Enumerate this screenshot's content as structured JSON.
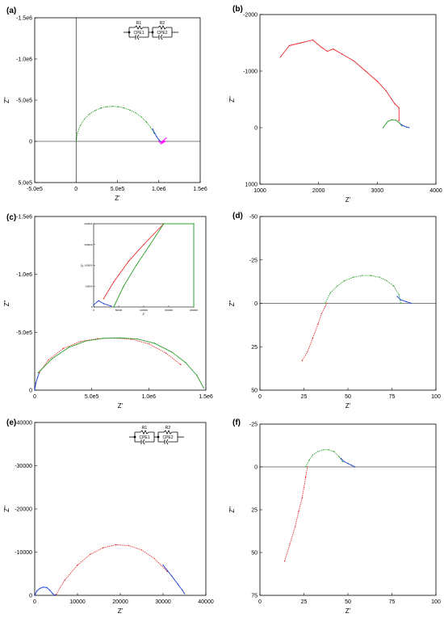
{
  "chart_data": [
    {
      "id": "a",
      "panel_label": "(a)",
      "type": "scatter",
      "xlabel": "Z'",
      "ylabel": "Z\"",
      "xlim": [
        -500000,
        1500000
      ],
      "ylim": [
        500000,
        -1500000
      ],
      "xticks": [
        -500000,
        0,
        500000,
        1000000,
        1500000
      ],
      "xtick_labels": [
        "-5.0e5",
        "0",
        "5.0e5",
        "1.0e6",
        "1.5e6"
      ],
      "yticks": [
        -1500000,
        -1000000,
        -500000,
        0,
        500000
      ],
      "ytick_labels": [
        "-1.5e6",
        "-1.0e6",
        "-5.0e5",
        "0",
        "5.0e5"
      ],
      "zero_lines": true,
      "legend": "none",
      "circuit": {
        "r1": "R1",
        "r2": "R2",
        "c1": "CPE1",
        "c2": "CPE2"
      },
      "series": [
        {
          "color": "#2ca02c",
          "style": "dotted",
          "x": [
            3500,
            15000,
            50000,
            100000,
            160000,
            230000,
            300000,
            370000,
            440000,
            510000,
            580000,
            650000,
            720000,
            790000,
            850000,
            900000,
            945000
          ],
          "y": [
            0,
            -100000,
            -190000,
            -270000,
            -330000,
            -375000,
            -405000,
            -420000,
            -425000,
            -420000,
            -405000,
            -380000,
            -345000,
            -295000,
            -235000,
            -170000,
            -95000
          ]
        },
        {
          "color": "#1f3fd1",
          "style": "solid",
          "x": [
            925000,
            950000,
            975000,
            1000000,
            1020000
          ],
          "y": [
            -150000,
            -100000,
            -55000,
            -20000,
            0
          ]
        },
        {
          "color": "#ff00ff",
          "style": "solid",
          "x": [
            1000000,
            1030000,
            1060000,
            1040000,
            1070000,
            1045000,
            1080000,
            1030000,
            1090000
          ],
          "y": [
            0,
            30000,
            -10000,
            15000,
            -25000,
            20000,
            0,
            10000,
            -40000
          ]
        }
      ]
    },
    {
      "id": "b",
      "panel_label": "(b)",
      "type": "line",
      "xlabel": "Z'",
      "ylabel": "Z\"",
      "xlim": [
        1000,
        4000
      ],
      "ylim": [
        1000,
        -2000
      ],
      "xticks": [
        1000,
        2000,
        3000,
        4000
      ],
      "xtick_labels": [
        "1000",
        "2000",
        "3000",
        "4000"
      ],
      "yticks": [
        -2000,
        -1000,
        0,
        1000
      ],
      "ytick_labels": [
        "-2000",
        "-1000",
        "0",
        "1000"
      ],
      "zero_lines": false,
      "legend": "none",
      "series": [
        {
          "color": "#e8282b",
          "style": "solid",
          "x": [
            1350,
            1500,
            1700,
            1900,
            2050,
            2150,
            2250,
            2400,
            2600,
            2800,
            3000,
            3150,
            3300,
            3370,
            3370
          ],
          "y": [
            -1250,
            -1450,
            -1500,
            -1550,
            -1420,
            -1350,
            -1390,
            -1300,
            -1180,
            -1000,
            -820,
            -650,
            -420,
            -350,
            -120
          ]
        },
        {
          "color": "#2ca02c",
          "style": "solid",
          "x": [
            3100,
            3180,
            3250,
            3320,
            3380,
            3420
          ],
          "y": [
            0,
            -110,
            -140,
            -130,
            -80,
            -30
          ]
        },
        {
          "color": "#1f3fd1",
          "style": "solid",
          "x": [
            3400,
            3450,
            3500,
            3540
          ],
          "y": [
            -60,
            -30,
            -10,
            0
          ]
        }
      ]
    },
    {
      "id": "c",
      "panel_label": "(c)",
      "type": "scatter",
      "xlabel": "Z'",
      "ylabel": "Z\"",
      "xlim": [
        0,
        1500000
      ],
      "ylim": [
        0,
        -1500000
      ],
      "xticks": [
        0,
        500000,
        1000000,
        1500000
      ],
      "xtick_labels": [
        "0",
        "5.0e5",
        "1.0e6",
        "1.5e6"
      ],
      "yticks": [
        -1500000,
        -1000000,
        -500000,
        0
      ],
      "ytick_labels": [
        "-1.5e6",
        "-1.0e6",
        "-5.0e5",
        "0"
      ],
      "zero_lines": false,
      "legend": "none",
      "series": [
        {
          "color": "#1f3fd1",
          "style": "solid",
          "x": [
            0,
            10000,
            25000,
            40000
          ],
          "y": [
            0,
            -60000,
            -110000,
            -150000
          ]
        },
        {
          "color": "#e8282b",
          "style": "dotted",
          "x": [
            40000,
            120000,
            250000,
            400000,
            550000,
            700000,
            850000,
            1000000,
            1150000,
            1280000
          ],
          "y": [
            -150000,
            -260000,
            -360000,
            -420000,
            -445000,
            -450000,
            -440000,
            -400000,
            -320000,
            -220000
          ]
        },
        {
          "color": "#2ca02c",
          "style": "solid",
          "x": [
            30000,
            150000,
            300000,
            450000,
            600000,
            750000,
            900000,
            1050000,
            1200000,
            1320000,
            1420000,
            1480000
          ],
          "y": [
            -150000,
            -270000,
            -370000,
            -425000,
            -448000,
            -452000,
            -442000,
            -405000,
            -330000,
            -240000,
            -130000,
            -20000
          ]
        }
      ],
      "inset": {
        "xlim": [
          0,
          200000
        ],
        "ylim": [
          0,
          -200000
        ],
        "xticks": [
          0,
          50000,
          100000,
          150000,
          200000
        ],
        "xtick_labels": [
          "0",
          "50000",
          "100000",
          "150000",
          "200000"
        ],
        "yticks": [
          -200000,
          -150000,
          -100000,
          -50000,
          0
        ],
        "ytick_labels": [
          "-200000",
          "-150000",
          "-100000",
          "-50000",
          "0"
        ],
        "xlabel": "Z'",
        "ylabel": "Z\"",
        "series": [
          {
            "color": "#1f3fd1",
            "style": "solid",
            "x": [
              0,
              10000,
              20000,
              35000
            ],
            "y": [
              -5000,
              -15000,
              -8000,
              -2000
            ]
          },
          {
            "color": "#e8282b",
            "style": "solid",
            "x": [
              20000,
              40000,
              70000,
              100000,
              140000
            ],
            "y": [
              -20000,
              -60000,
              -110000,
              -150000,
              -200000
            ]
          },
          {
            "color": "#2ca02c",
            "style": "solid",
            "x": [
              40000,
              60000,
              85000,
              110000,
              140000,
              200000,
              200000
            ],
            "y": [
              0,
              -50000,
              -100000,
              -145000,
              -200000,
              -200000,
              0
            ]
          }
        ]
      }
    },
    {
      "id": "d",
      "panel_label": "(d)",
      "type": "scatter",
      "xlabel": "Z'",
      "ylabel": "Z\"",
      "xlim": [
        0,
        100
      ],
      "ylim": [
        50,
        -50
      ],
      "xticks": [
        0,
        25,
        50,
        75,
        100
      ],
      "xtick_labels": [
        "0",
        "25",
        "50",
        "75",
        "100"
      ],
      "yticks": [
        -50,
        -25,
        0,
        25,
        50
      ],
      "ytick_labels": [
        "-50",
        "-25",
        "0",
        "25",
        "50"
      ],
      "zero_lines": true,
      "legend": "none",
      "series": [
        {
          "color": "#e8282b",
          "style": "dotted",
          "x": [
            24,
            27,
            30,
            33,
            35,
            37,
            38
          ],
          "y": [
            33,
            28,
            20,
            12,
            6,
            2,
            0
          ]
        },
        {
          "color": "#2ca02c",
          "style": "dotted",
          "x": [
            37,
            40,
            44,
            48,
            53,
            58,
            63,
            68,
            72,
            76,
            79,
            80
          ],
          "y": [
            0,
            -6,
            -10,
            -13,
            -15,
            -16,
            -16,
            -15,
            -13,
            -10,
            -5,
            0
          ]
        },
        {
          "color": "#1f3fd1",
          "style": "solid",
          "x": [
            78,
            80,
            83,
            86
          ],
          "y": [
            -4,
            -2,
            -1,
            0
          ]
        }
      ]
    },
    {
      "id": "e",
      "panel_label": "(e)",
      "type": "scatter",
      "xlabel": "Z'",
      "ylabel": "Z\"",
      "xlim": [
        0,
        40000
      ],
      "ylim": [
        0,
        -40000
      ],
      "xticks": [
        0,
        10000,
        20000,
        30000,
        40000
      ],
      "xtick_labels": [
        "0",
        "10000",
        "20000",
        "30000",
        "40000"
      ],
      "yticks": [
        -40000,
        -30000,
        -20000,
        -10000,
        0
      ],
      "ytick_labels": [
        "-40000",
        "-30000",
        "-20000",
        "-10000",
        "0"
      ],
      "zero_lines": false,
      "legend": "none",
      "circuit": {
        "r1": "R1",
        "r2": "R2",
        "c1": "CPE1",
        "c2": "CPE2"
      },
      "series": [
        {
          "color": "#1f3fd1",
          "style": "solid",
          "x": [
            0,
            500,
            1200,
            2000,
            2800,
            3500,
            4200,
            4600,
            5000
          ],
          "y": [
            0,
            -1000,
            -1600,
            -1900,
            -1800,
            -1200,
            -400,
            0,
            -200
          ]
        },
        {
          "color": "#e8282b",
          "style": "dotted",
          "x": [
            5000,
            7000,
            10000,
            13000,
            16000,
            19000,
            22000,
            25000,
            28000,
            31000
          ],
          "y": [
            -200,
            -3500,
            -7000,
            -9500,
            -11000,
            -11700,
            -11500,
            -10500,
            -8500,
            -5500
          ]
        },
        {
          "color": "#1f3fd1",
          "style": "solid",
          "x": [
            30000,
            32000,
            33500,
            34500,
            35000
          ],
          "y": [
            -7000,
            -4500,
            -2500,
            -1200,
            -400
          ]
        }
      ]
    },
    {
      "id": "f",
      "panel_label": "(f)",
      "type": "scatter",
      "xlabel": "Z'",
      "ylabel": "Z\"",
      "xlim": [
        0,
        100
      ],
      "ylim": [
        75,
        -25
      ],
      "xticks": [
        0,
        25,
        50,
        75,
        100
      ],
      "xtick_labels": [
        "0",
        "25",
        "50",
        "75",
        "100"
      ],
      "yticks": [
        -25,
        0,
        25,
        50,
        75
      ],
      "ytick_labels": [
        "-25",
        "0",
        "25",
        "50",
        "75"
      ],
      "zero_lines": true,
      "legend": "none",
      "series": [
        {
          "color": "#e8282b",
          "style": "dotted",
          "x": [
            14,
            17,
            20,
            22,
            24,
            25,
            26,
            27
          ],
          "y": [
            55,
            45,
            35,
            26,
            18,
            12,
            6,
            0
          ]
        },
        {
          "color": "#2ca02c",
          "style": "dotted",
          "x": [
            26,
            28,
            30,
            33,
            36,
            39,
            42,
            45,
            47
          ],
          "y": [
            0,
            -4,
            -7,
            -9,
            -10,
            -10,
            -9,
            -6,
            -3
          ]
        },
        {
          "color": "#1f3fd1",
          "style": "solid",
          "x": [
            46,
            48,
            50,
            52,
            54
          ],
          "y": [
            -5,
            -3,
            -2,
            -1,
            0
          ]
        }
      ]
    }
  ]
}
